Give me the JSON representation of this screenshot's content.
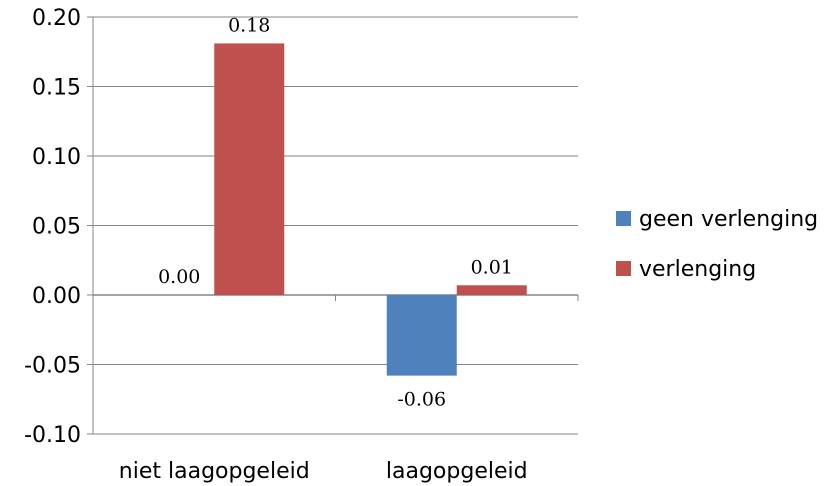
{
  "chart_data": {
    "type": "bar",
    "categories": [
      "niet laagopgeleid",
      "laagopgeleid"
    ],
    "series": [
      {
        "name": "geen verlenging",
        "color": "#4f81bd",
        "values": [
          0.0,
          -0.058
        ],
        "data_labels": [
          "0.00",
          "-0.06"
        ]
      },
      {
        "name": "verlenging",
        "color": "#c0504d",
        "values": [
          0.181,
          0.007
        ],
        "data_labels": [
          "0.18",
          "0.01"
        ]
      }
    ],
    "yticks": [
      0.2,
      0.15,
      0.1,
      0.05,
      0.0,
      -0.05,
      -0.1
    ],
    "ytick_labels": [
      "0.20",
      "0.15",
      "0.10",
      "0.05",
      "0.00",
      "-0.05",
      "-0.10"
    ],
    "ylim": [
      -0.1,
      0.2
    ],
    "grid": true,
    "legend_position": "right"
  }
}
